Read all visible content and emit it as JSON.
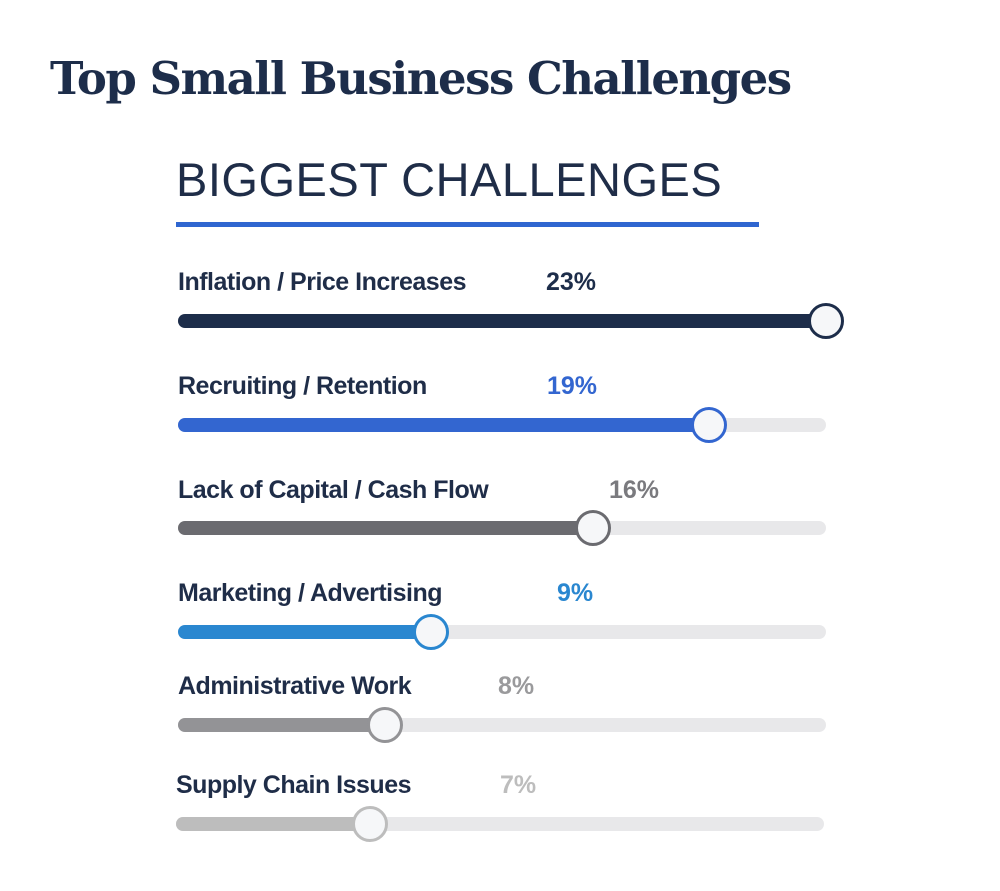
{
  "title": "Top Small Business Challenges",
  "chart_data": {
    "type": "bar",
    "title": "BIGGEST CHALLENGES",
    "categories": [
      "Inflation / Price Increases",
      "Recruiting / Retention",
      "Lack of Capital / Cash Flow",
      "Marketing / Advertising",
      "Administrative Work",
      "Supply Chain Issues"
    ],
    "values": [
      23,
      19,
      16,
      9,
      8,
      7
    ],
    "value_labels": [
      "23%",
      "19%",
      "16%",
      "9%",
      "8%",
      "7%"
    ],
    "slider_fill": [
      1.0,
      0.82,
      0.64,
      0.39,
      0.32,
      0.3
    ],
    "colors": [
      "#1d2d4a",
      "#3366d0",
      "#6b6b70",
      "#2a87d0",
      "#939396",
      "#bdbdbd"
    ],
    "value_colors": [
      "#1d2d4a",
      "#3366d0",
      "#7a7a7e",
      "#2a87d0",
      "#9a9a9c",
      "#bdbdbd"
    ],
    "accent": "#2f66d0"
  }
}
